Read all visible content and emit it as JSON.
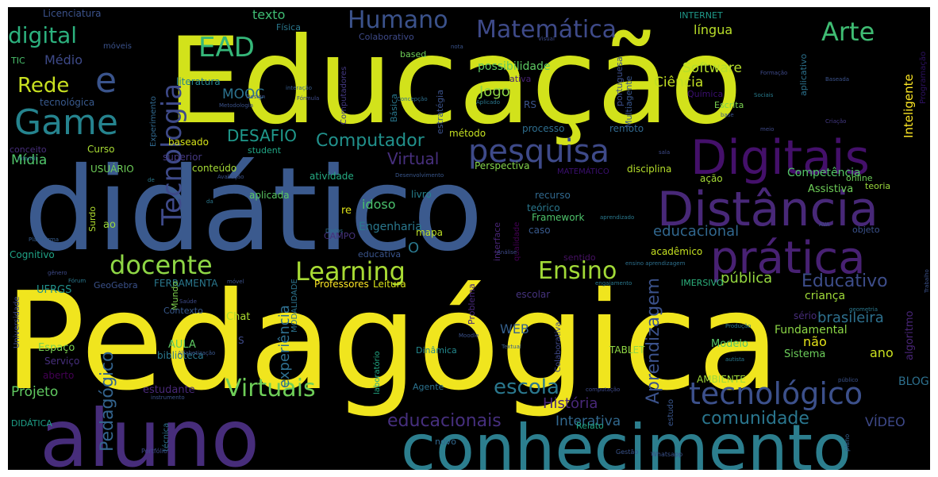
{
  "words": [
    {
      "text": "Educação",
      "color": "#d2e21b"
    },
    {
      "text": "didático",
      "color": "#3b5a8e"
    },
    {
      "text": "Pedagógica",
      "color": "#f0e51e"
    },
    {
      "text": "aluno",
      "color": "#472d7b"
    },
    {
      "text": "conhecimento",
      "color": "#2c7e8e"
    },
    {
      "text": "Distância",
      "color": "#482878"
    },
    {
      "text": "Digitais",
      "color": "#44106a"
    },
    {
      "text": "prática",
      "color": "#482173"
    },
    {
      "text": "pesquisa",
      "color": "#3e4a89"
    },
    {
      "text": "tecnológico",
      "color": "#3c508b"
    },
    {
      "text": "Tecnologia",
      "color": "#3e4a89"
    },
    {
      "text": "Game",
      "color": "#25838e"
    },
    {
      "text": "Matemática",
      "color": "#3e4a89"
    },
    {
      "text": "Humano",
      "color": "#3b528b"
    },
    {
      "text": "Arte",
      "color": "#3fbc73"
    },
    {
      "text": "EAD",
      "color": "#35b779"
    },
    {
      "text": "digital",
      "color": "#2cb17e"
    },
    {
      "text": "Rede",
      "color": "#c8e020"
    },
    {
      "text": "e",
      "color": "#3a548c"
    },
    {
      "text": "docente",
      "color": "#8ed645"
    },
    {
      "text": "Learning",
      "color": "#a8db34"
    },
    {
      "text": "Ensino",
      "color": "#a2da37"
    },
    {
      "text": "Virtuais",
      "color": "#6ece58"
    },
    {
      "text": "escola",
      "color": "#2a788e"
    },
    {
      "text": "comunidade",
      "color": "#2a768e"
    },
    {
      "text": "Educativo",
      "color": "#3d4d8a"
    },
    {
      "text": "educacionais",
      "color": "#462f7e"
    },
    {
      "text": "Computador",
      "color": "#21918c"
    },
    {
      "text": "DESAFIO",
      "color": "#1f988b"
    },
    {
      "text": "Aprendizagem",
      "color": "#3b528b"
    },
    {
      "text": "Pedagógico",
      "color": "#33638d"
    },
    {
      "text": "experiência",
      "color": "#2e6e8e"
    },
    {
      "text": "Virtual",
      "color": "#472f7d"
    },
    {
      "text": "brasileira",
      "color": "#2d708e"
    },
    {
      "text": "educacional",
      "color": "#31678e"
    },
    {
      "text": "pública",
      "color": "#95d840"
    },
    {
      "text": "Mídia",
      "color": "#50c46a"
    },
    {
      "text": "História",
      "color": "#482878"
    },
    {
      "text": "Interativa",
      "color": "#31688e"
    },
    {
      "text": "Projeto",
      "color": "#60ca60"
    },
    {
      "text": "Software",
      "color": "#b5de2b"
    },
    {
      "text": "Ciência",
      "color": "#c2df23"
    },
    {
      "text": "Jogo",
      "color": "#8ed645"
    },
    {
      "text": "MOOC",
      "color": "#2c728e"
    },
    {
      "text": "Médio",
      "color": "#3e4a89"
    },
    {
      "text": "texto",
      "color": "#3fbc73"
    },
    {
      "text": "língua",
      "color": "#b8de29"
    },
    {
      "text": "Inteligente",
      "color": "#fde725"
    },
    {
      "text": "possibilidade",
      "color": "#5ec962"
    },
    {
      "text": "Competência",
      "color": "#54c568"
    },
    {
      "text": "VÍDEO",
      "color": "#3e4989"
    },
    {
      "text": "idoso",
      "color": "#4ac16d"
    },
    {
      "text": "Engenharia",
      "color": "#2a788e"
    },
    {
      "text": "Fundamental",
      "color": "#8bd646"
    },
    {
      "text": "WEB",
      "color": "#35608d"
    },
    {
      "text": "Assistiva",
      "color": "#6ece58"
    },
    {
      "text": "algoritmo",
      "color": "#482576"
    },
    {
      "text": "criança",
      "color": "#a0da39"
    },
    {
      "text": "não",
      "color": "#e5e419"
    },
    {
      "text": "ano",
      "color": "#cae11f"
    },
    {
      "text": "BLOG",
      "color": "#2d708e"
    },
    {
      "text": "Sistema",
      "color": "#6ccd5a"
    },
    {
      "text": "Modelo",
      "color": "#56c667"
    },
    {
      "text": "Chat",
      "color": "#addc30"
    },
    {
      "text": "AULA",
      "color": "#5ec962"
    },
    {
      "text": "biblioteca",
      "color": "#2a788e"
    },
    {
      "text": "Espaço",
      "color": "#7ad151"
    },
    {
      "text": "Serviço",
      "color": "#472f7d"
    },
    {
      "text": "aberto",
      "color": "#440154"
    },
    {
      "text": "estudante",
      "color": "#482878"
    },
    {
      "text": "UFRGS",
      "color": "#21918c"
    },
    {
      "text": "GeoGebra",
      "color": "#3b528b"
    },
    {
      "text": "FERRAMENTA",
      "color": "#2a788e"
    },
    {
      "text": "Professores",
      "color": "#fde725"
    },
    {
      "text": "Leitura",
      "color": "#d8e219"
    },
    {
      "text": "Problema",
      "color": "#482878"
    },
    {
      "text": "escolar",
      "color": "#46337e"
    },
    {
      "text": "Dinâmica",
      "color": "#23898e"
    },
    {
      "text": "TABLET",
      "color": "#8fd744"
    },
    {
      "text": "AMBIENTE",
      "color": "#9fda3a"
    },
    {
      "text": "IMERSIVO",
      "color": "#2db27d"
    },
    {
      "text": "sério",
      "color": "#472d7b"
    },
    {
      "text": "acadêmico",
      "color": "#c5e021"
    },
    {
      "text": "sentido",
      "color": "#471164"
    },
    {
      "text": "Framework",
      "color": "#4ec36b"
    },
    {
      "text": "mapa",
      "color": "#bddf26"
    },
    {
      "text": "caso",
      "color": "#38598c"
    },
    {
      "text": "teórico",
      "color": "#2a788e"
    },
    {
      "text": "recurso",
      "color": "#31688e"
    },
    {
      "text": "livro",
      "color": "#26818e"
    },
    {
      "text": "Perspectiva",
      "color": "#84d44b"
    },
    {
      "text": "atividade",
      "color": "#25ab82"
    },
    {
      "text": "conteúdo",
      "color": "#a5db36"
    },
    {
      "text": "USUÁRIO",
      "color": "#6ece58"
    },
    {
      "text": "Curso",
      "color": "#a8db34"
    },
    {
      "text": "superior",
      "color": "#453882"
    },
    {
      "text": "student",
      "color": "#21a685"
    },
    {
      "text": "baseado",
      "color": "#d5e21a"
    },
    {
      "text": "conceito",
      "color": "#472d7b"
    },
    {
      "text": "aplicada",
      "color": "#5ac864"
    },
    {
      "text": "Cognitivo",
      "color": "#20a386"
    },
    {
      "text": "Surdo",
      "color": "#b0dd2f"
    },
    {
      "text": "ao",
      "color": "#9bd93c"
    },
    {
      "text": "Mundo",
      "color": "#7fd34e"
    },
    {
      "text": "Contexto",
      "color": "#38598c"
    },
    {
      "text": "re",
      "color": "#dfe318"
    },
    {
      "text": "S",
      "color": "#3e4a89"
    },
    {
      "text": "O",
      "color": "#2a788e"
    },
    {
      "text": "CAMPO",
      "color": "#46337e"
    },
    {
      "text": "educativa",
      "color": "#3a548c"
    },
    {
      "text": "interface",
      "color": "#482576"
    },
    {
      "text": "qualidade",
      "color": "#440154"
    },
    {
      "text": "processo",
      "color": "#2e6e8e"
    },
    {
      "text": "remoto",
      "color": "#31688e"
    },
    {
      "text": "método",
      "color": "#c5e021"
    },
    {
      "text": "RS",
      "color": "#3a548c"
    },
    {
      "text": "ativa",
      "color": "#482173"
    },
    {
      "text": "estratégia",
      "color": "#3b528b"
    },
    {
      "text": "Básica",
      "color": "#2a788e"
    },
    {
      "text": "portuguesa",
      "color": "#3d4e8a"
    },
    {
      "text": "Multiagente",
      "color": "#39568c"
    },
    {
      "text": "Química",
      "color": "#3b0f70"
    },
    {
      "text": "Escrita",
      "color": "#7ad151"
    },
    {
      "text": "aplicativo",
      "color": "#2c728e"
    },
    {
      "text": "Programação",
      "color": "#2d1160"
    },
    {
      "text": "Licenciatura",
      "color": "#3b528b"
    },
    {
      "text": "móveis",
      "color": "#3b528b"
    },
    {
      "text": "TIC",
      "color": "#4ac16d"
    },
    {
      "text": "tecnológica",
      "color": "#38598c"
    },
    {
      "text": "Física",
      "color": "#2a788e"
    },
    {
      "text": "Colaborativo",
      "color": "#3e4a89"
    },
    {
      "text": "based",
      "color": "#6ece58"
    },
    {
      "text": "literatura",
      "color": "#25838e"
    },
    {
      "text": "Experimento",
      "color": "#31688e"
    },
    {
      "text": "Computadores",
      "color": "#443983"
    },
    {
      "text": "INTERNET",
      "color": "#1f9a8a"
    },
    {
      "text": "Universidade",
      "color": "#3e4a89"
    },
    {
      "text": "MODALIDADE",
      "color": "#2c738e"
    },
    {
      "text": "MATEMÁTICO",
      "color": "#3b0f70"
    },
    {
      "text": "disciplina",
      "color": "#b5de2b"
    },
    {
      "text": "ação",
      "color": "#a5db36"
    },
    {
      "text": "online",
      "color": "#6ccd5a"
    },
    {
      "text": "teoria",
      "color": "#9bd93c"
    },
    {
      "text": "objeto",
      "color": "#3b528b"
    },
    {
      "text": "DIDÁTICA",
      "color": "#1fa088"
    },
    {
      "text": "novo",
      "color": "#31688e"
    },
    {
      "text": "Relato",
      "color": "#22a785"
    },
    {
      "text": "Agente",
      "color": "#2c728e"
    },
    {
      "text": "Colaborativa",
      "color": "#3f4889"
    },
    {
      "text": "laboratório",
      "color": "#22a884"
    },
    {
      "text": "estudo",
      "color": "#39568c"
    },
    {
      "text": "técnica",
      "color": "#2d708e"
    },
    {
      "text": "Portfólio",
      "color": "#3e4a89"
    },
    {
      "text": "Gestão",
      "color": "#3a548c"
    },
    {
      "text": "Whatsapp",
      "color": "#3b528b"
    },
    {
      "text": "plano",
      "color": "#34608d"
    },
    {
      "text": "Visual",
      "color": "#3e4a89"
    },
    {
      "text": "nota",
      "color": "#3a548c"
    },
    {
      "text": "interação",
      "color": "#365c8d"
    },
    {
      "text": "Concepção",
      "color": "#2d708e"
    },
    {
      "text": "Aplicado",
      "color": "#2a788e"
    },
    {
      "text": "Baseada",
      "color": "#3b528b"
    },
    {
      "text": "Sociais",
      "color": "#287c8e"
    },
    {
      "text": "Criação",
      "color": "#443983"
    },
    {
      "text": "meio",
      "color": "#3e4a89"
    },
    {
      "text": "Avaliação",
      "color": "#3b528b"
    },
    {
      "text": "Desenvolvimento",
      "color": "#39568c"
    },
    {
      "text": "Dados",
      "color": "#2d708e"
    },
    {
      "text": "Análise",
      "color": "#3e4a89"
    },
    {
      "text": "aprendizado",
      "color": "#2a788e"
    },
    {
      "text": "AVA",
      "color": "#3b528b"
    },
    {
      "text": "ensino aprendizagem",
      "color": "#2d708e"
    },
    {
      "text": "engajamento",
      "color": "#2a788e"
    },
    {
      "text": "Moodle",
      "color": "#3b528b"
    },
    {
      "text": "Textual",
      "color": "#365c8d"
    },
    {
      "text": "Produção",
      "color": "#2a788e"
    },
    {
      "text": "Saúde",
      "color": "#3e4a89"
    },
    {
      "text": "Alfabetização",
      "color": "#39568c"
    },
    {
      "text": "instrumento",
      "color": "#3b528b"
    },
    {
      "text": "computação",
      "color": "#3e4a89"
    },
    {
      "text": "autista",
      "color": "#2a788e"
    },
    {
      "text": "público",
      "color": "#3b528b"
    },
    {
      "text": "Plataforma",
      "color": "#365c8d"
    },
    {
      "text": "gênero",
      "color": "#3e4a89"
    },
    {
      "text": "Fórum",
      "color": "#2a788e"
    },
    {
      "text": "móvel",
      "color": "#3b528b"
    },
    {
      "text": "Design",
      "color": "#3e4a89"
    },
    {
      "text": "Infantil",
      "color": "#2d708e"
    },
    {
      "text": "Metodologia",
      "color": "#3b528b"
    },
    {
      "text": "Fórmula",
      "color": "#3e4a89"
    },
    {
      "text": "geometria",
      "color": "#2a788e"
    },
    {
      "text": "Trabalho",
      "color": "#3b528b"
    },
    {
      "text": "Formação",
      "color": "#3e4a89"
    },
    {
      "text": "da",
      "color": "#2a788e"
    },
    {
      "text": "base",
      "color": "#3b528b"
    },
    {
      "text": "sala",
      "color": "#3e4a89"
    },
    {
      "text": "de",
      "color": "#2a788e"
    }
  ]
}
